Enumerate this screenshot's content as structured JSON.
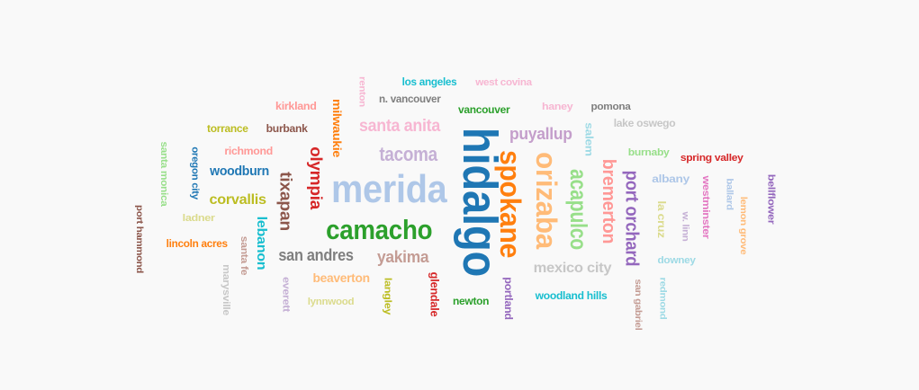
{
  "words": [
    {
      "text": "hidalgo",
      "color": "#1f77b4"
    },
    {
      "text": "merida",
      "color": "#aec7e8"
    },
    {
      "text": "camacho",
      "color": "#2ca02c"
    },
    {
      "text": "spokane",
      "color": "#ff7f0e"
    },
    {
      "text": "orizaba",
      "color": "#ffbb78"
    },
    {
      "text": "acapulco",
      "color": "#98df8a"
    },
    {
      "text": "bremerton",
      "color": "#ff9896"
    },
    {
      "text": "port orchard",
      "color": "#9467bd"
    },
    {
      "text": "tacoma",
      "color": "#c5b0d5"
    },
    {
      "text": "santa anita",
      "color": "#f7b6d2"
    },
    {
      "text": "puyallup",
      "color": "#c49ecb"
    },
    {
      "text": "olympia",
      "color": "#d62728"
    },
    {
      "text": "tixapan",
      "color": "#8c564b"
    },
    {
      "text": "san andres",
      "color": "#7f7f7f"
    },
    {
      "text": "yakima",
      "color": "#c49c94"
    },
    {
      "text": "mexico city",
      "color": "#c7c7c7"
    },
    {
      "text": "corvallis",
      "color": "#bcbd22"
    },
    {
      "text": "woodburn",
      "color": "#1f77b4"
    },
    {
      "text": "lebanon",
      "color": "#17becf"
    },
    {
      "text": "milwaukie",
      "color": "#ff7f0e"
    },
    {
      "text": "beaverton",
      "color": "#ffbb78"
    },
    {
      "text": "glendale",
      "color": "#d62728"
    },
    {
      "text": "newton",
      "color": "#2ca02c"
    },
    {
      "text": "portland",
      "color": "#9467bd"
    },
    {
      "text": "woodland hills",
      "color": "#17becf"
    },
    {
      "text": "vancouver",
      "color": "#2ca02c"
    },
    {
      "text": "los angeles",
      "color": "#17becf"
    },
    {
      "text": "west covina",
      "color": "#f7b6d2"
    },
    {
      "text": "n. vancouver",
      "color": "#7f7f7f"
    },
    {
      "text": "renton",
      "color": "#f7b6d2"
    },
    {
      "text": "kirkland",
      "color": "#ff9896"
    },
    {
      "text": "burbank",
      "color": "#8c564b"
    },
    {
      "text": "torrance",
      "color": "#bcbd22"
    },
    {
      "text": "richmond",
      "color": "#ff9896"
    },
    {
      "text": "oregon city",
      "color": "#1f77b4"
    },
    {
      "text": "santa monica",
      "color": "#98df8a"
    },
    {
      "text": "port hammond",
      "color": "#8c564b"
    },
    {
      "text": "ladner",
      "color": "#dbdb8d"
    },
    {
      "text": "lincoln acres",
      "color": "#ff7f0e"
    },
    {
      "text": "santa fe",
      "color": "#c49c94"
    },
    {
      "text": "marysville",
      "color": "#c7c7c7"
    },
    {
      "text": "everett",
      "color": "#c5b0d5"
    },
    {
      "text": "lynnwood",
      "color": "#dbdb8d"
    },
    {
      "text": "langley",
      "color": "#bcbd22"
    },
    {
      "text": "haney",
      "color": "#f7b6d2"
    },
    {
      "text": "pomona",
      "color": "#7f7f7f"
    },
    {
      "text": "salem",
      "color": "#9edae5"
    },
    {
      "text": "lake oswego",
      "color": "#c7c7c7"
    },
    {
      "text": "burnaby",
      "color": "#98df8a"
    },
    {
      "text": "spring valley",
      "color": "#d62728"
    },
    {
      "text": "albany",
      "color": "#aec7e8"
    },
    {
      "text": "la cruz",
      "color": "#dbdb8d"
    },
    {
      "text": "w. linn",
      "color": "#c5b0d5"
    },
    {
      "text": "westminster",
      "color": "#e377c2"
    },
    {
      "text": "ballard",
      "color": "#aec7e8"
    },
    {
      "text": "lemon grove",
      "color": "#ffbb78"
    },
    {
      "text": "bellflower",
      "color": "#9467bd"
    },
    {
      "text": "downey",
      "color": "#9edae5"
    },
    {
      "text": "san gabriel",
      "color": "#c49c94"
    },
    {
      "text": "redmond",
      "color": "#9edae5"
    }
  ]
}
